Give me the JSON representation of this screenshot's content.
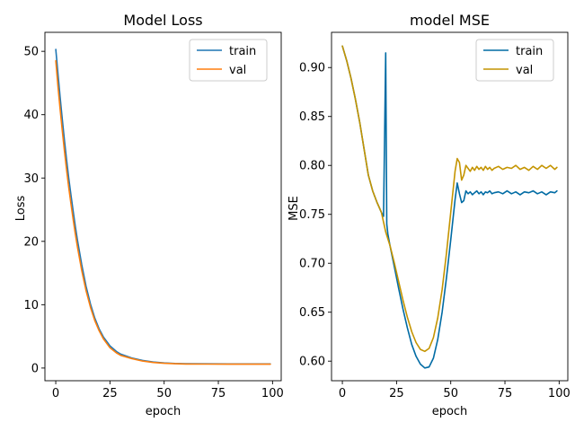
{
  "chart_data": [
    {
      "type": "line",
      "title": "Model Loss",
      "xlabel": "epoch",
      "ylabel": "Loss",
      "xlim": [
        -5,
        104
      ],
      "ylim": [
        -2,
        53
      ],
      "xticks": [
        0,
        25,
        50,
        75,
        100
      ],
      "yticks": [
        0,
        10,
        20,
        30,
        40,
        50
      ],
      "legend_position": "top-right",
      "series": [
        {
          "name": "train",
          "color": "#1f77b4",
          "x": [
            0,
            1,
            2,
            3,
            4,
            5,
            6,
            7,
            8,
            9,
            10,
            12,
            14,
            16,
            18,
            20,
            22,
            25,
            28,
            30,
            35,
            40,
            45,
            50,
            55,
            60,
            70,
            80,
            90,
            99
          ],
          "y": [
            50.3,
            46.5,
            42.8,
            39.3,
            36.0,
            32.9,
            30.0,
            27.3,
            24.8,
            22.4,
            20.2,
            16.3,
            12.9,
            10.1,
            7.9,
            6.2,
            4.9,
            3.5,
            2.6,
            2.2,
            1.6,
            1.2,
            0.95,
            0.8,
            0.72,
            0.68,
            0.66,
            0.65,
            0.65,
            0.65
          ]
        },
        {
          "name": "val",
          "color": "#ff7f0e",
          "x": [
            0,
            1,
            2,
            3,
            4,
            5,
            6,
            7,
            8,
            9,
            10,
            12,
            14,
            16,
            18,
            20,
            22,
            25,
            28,
            30,
            35,
            40,
            45,
            50,
            55,
            60,
            70,
            80,
            90,
            99
          ],
          "y": [
            48.5,
            44.5,
            40.9,
            37.5,
            34.3,
            31.3,
            28.5,
            25.9,
            23.5,
            21.2,
            19.1,
            15.4,
            12.2,
            9.6,
            7.5,
            5.9,
            4.6,
            3.2,
            2.4,
            2.0,
            1.5,
            1.1,
            0.88,
            0.75,
            0.68,
            0.64,
            0.62,
            0.61,
            0.61,
            0.61
          ]
        }
      ]
    },
    {
      "type": "line",
      "title": "model MSE",
      "xlabel": "epoch",
      "ylabel": "MSE",
      "xlim": [
        -5,
        104
      ],
      "ylim": [
        0.58,
        0.936
      ],
      "xticks": [
        0,
        25,
        50,
        75,
        100
      ],
      "yticks": [
        0.6,
        0.65,
        0.7,
        0.75,
        0.8,
        0.85,
        0.9
      ],
      "legend_position": "top-right",
      "series": [
        {
          "name": "train",
          "color": "#006ba4",
          "x": [
            0,
            2,
            4,
            6,
            8,
            10,
            12,
            14,
            16,
            18,
            19,
            20,
            20.5,
            21,
            22,
            24,
            26,
            28,
            30,
            32,
            34,
            36,
            38,
            40,
            42,
            44,
            46,
            48,
            50,
            52,
            53,
            54,
            55,
            56,
            57,
            58,
            59,
            60,
            61,
            62,
            63,
            64,
            65,
            66,
            67,
            68,
            69,
            70,
            72,
            74,
            76,
            78,
            80,
            82,
            84,
            86,
            88,
            90,
            92,
            94,
            96,
            98,
            99
          ],
          "y": [
            0.922,
            0.907,
            0.889,
            0.868,
            0.844,
            0.817,
            0.79,
            0.774,
            0.762,
            0.752,
            0.748,
            0.915,
            0.74,
            0.73,
            0.718,
            0.696,
            0.674,
            0.653,
            0.634,
            0.617,
            0.605,
            0.597,
            0.593,
            0.594,
            0.603,
            0.622,
            0.65,
            0.685,
            0.724,
            0.765,
            0.782,
            0.771,
            0.762,
            0.764,
            0.774,
            0.771,
            0.773,
            0.77,
            0.772,
            0.774,
            0.771,
            0.773,
            0.77,
            0.773,
            0.772,
            0.774,
            0.771,
            0.772,
            0.773,
            0.771,
            0.774,
            0.771,
            0.773,
            0.77,
            0.773,
            0.772,
            0.774,
            0.771,
            0.773,
            0.77,
            0.773,
            0.772,
            0.774
          ]
        },
        {
          "name": "val",
          "color": "#c49400",
          "x": [
            0,
            2,
            4,
            6,
            8,
            10,
            12,
            14,
            16,
            18,
            20,
            22,
            24,
            26,
            28,
            30,
            32,
            34,
            36,
            38,
            40,
            42,
            44,
            46,
            48,
            50,
            52,
            53,
            54,
            55,
            56,
            57,
            58,
            59,
            60,
            61,
            62,
            63,
            64,
            65,
            66,
            67,
            68,
            69,
            70,
            72,
            74,
            76,
            78,
            80,
            82,
            84,
            86,
            88,
            90,
            92,
            94,
            96,
            98,
            99
          ],
          "y": [
            0.922,
            0.907,
            0.889,
            0.868,
            0.844,
            0.817,
            0.79,
            0.774,
            0.762,
            0.752,
            0.732,
            0.718,
            0.7,
            0.681,
            0.662,
            0.645,
            0.63,
            0.619,
            0.612,
            0.61,
            0.613,
            0.624,
            0.644,
            0.673,
            0.71,
            0.752,
            0.794,
            0.807,
            0.803,
            0.785,
            0.79,
            0.8,
            0.797,
            0.794,
            0.798,
            0.795,
            0.799,
            0.796,
            0.798,
            0.795,
            0.799,
            0.796,
            0.798,
            0.795,
            0.797,
            0.799,
            0.796,
            0.798,
            0.797,
            0.8,
            0.796,
            0.798,
            0.795,
            0.799,
            0.796,
            0.8,
            0.797,
            0.8,
            0.796,
            0.798
          ]
        }
      ]
    }
  ]
}
